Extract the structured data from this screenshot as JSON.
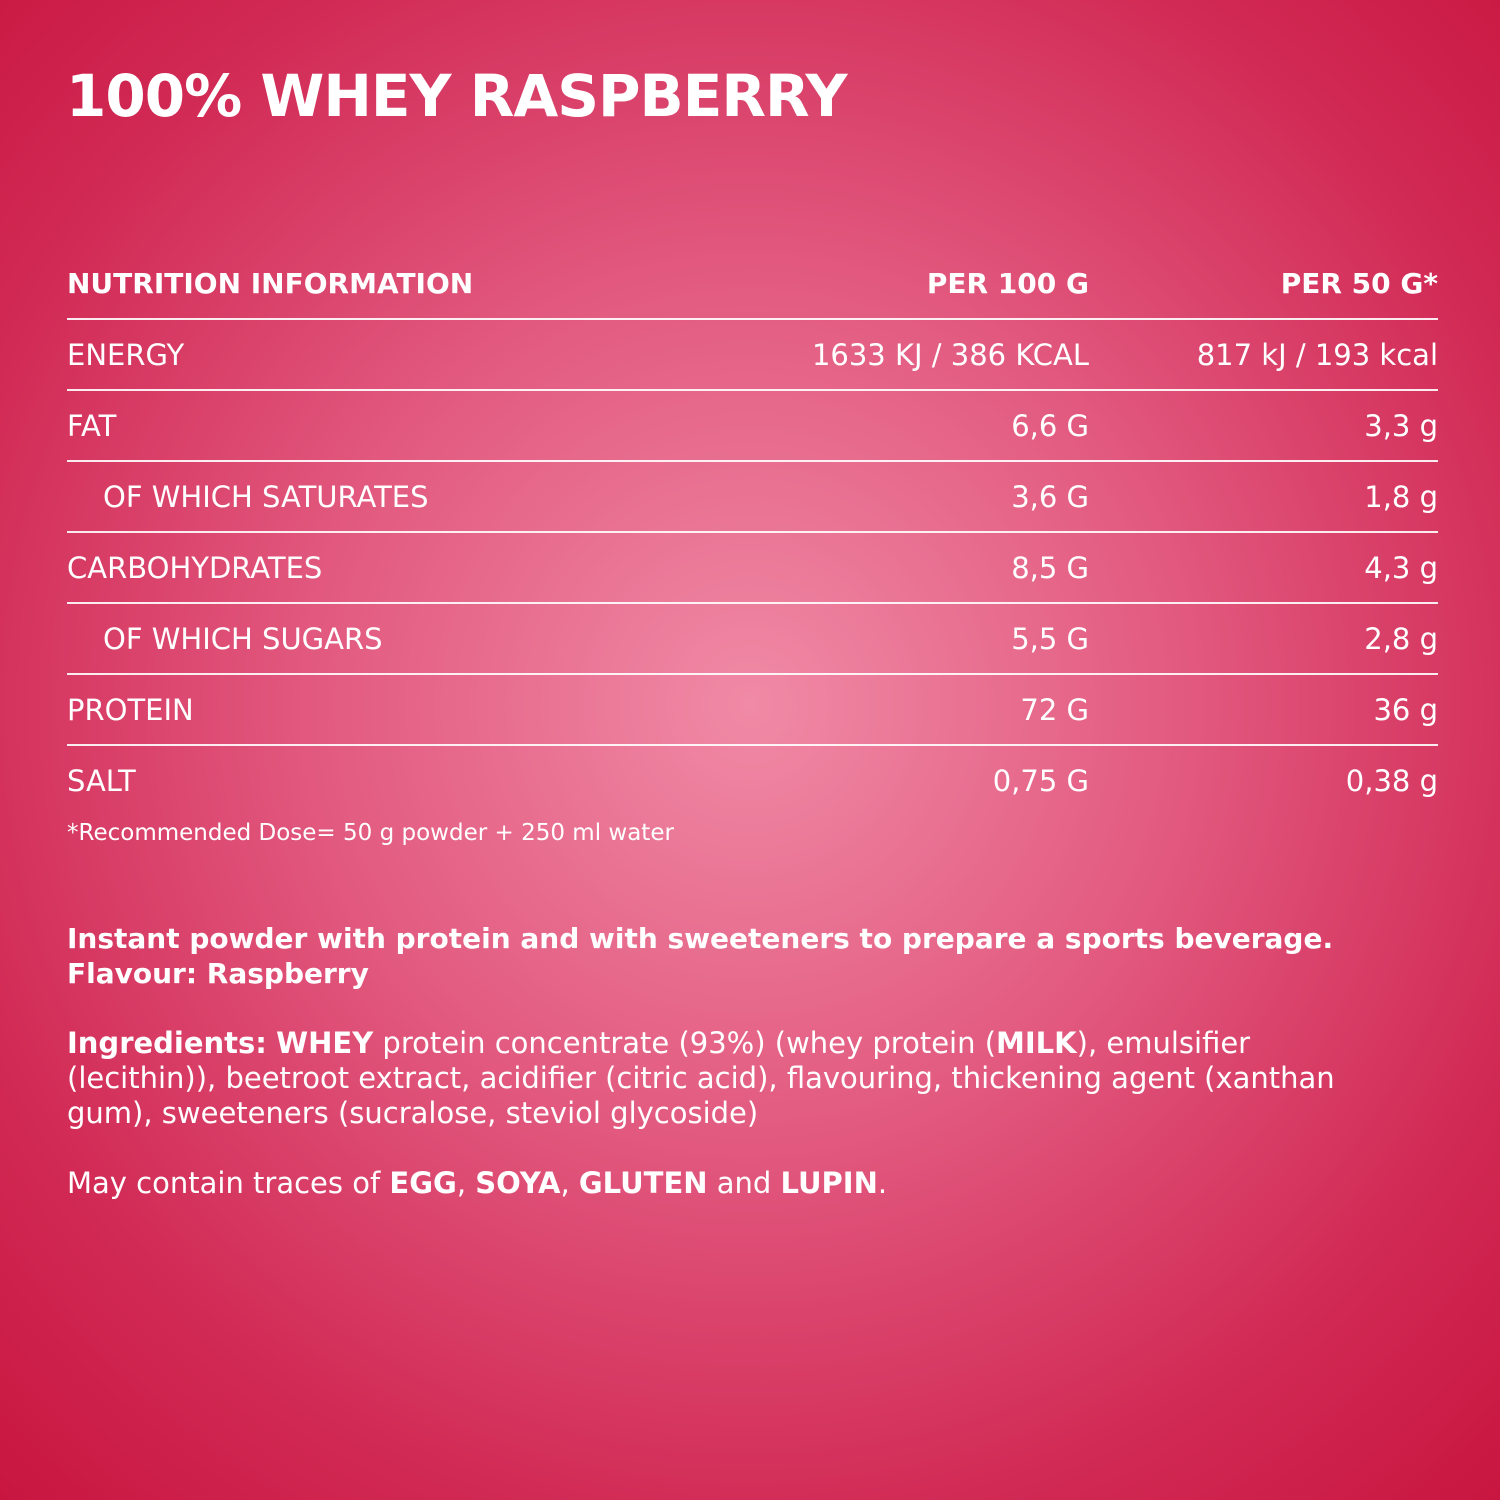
{
  "title": "100% WHEY RASPBERRY",
  "table": {
    "header": [
      "NUTRITION INFORMATION",
      "PER 100 G",
      "PER 50 G*"
    ],
    "rows": [
      [
        "ENERGY",
        "1633 KJ / 386 KCAL",
        "817 kJ / 193 kcal"
      ],
      [
        "FAT",
        "6,6 G",
        "3,3 g"
      ],
      [
        "OF WHICH SATURATES",
        "3,6 G",
        "1,8 g"
      ],
      [
        "CARBOHYDRATES",
        "8,5 G",
        "4,3 g"
      ],
      [
        "OF WHICH SUGARS",
        "5,5 G",
        "2,8 g"
      ],
      [
        "PROTEIN",
        "72 G",
        "36 g"
      ],
      [
        "SALT",
        "0,75 G",
        "0,38 g"
      ]
    ]
  },
  "footnote": "*Recommended Dose= 50 g powder + 250 ml water",
  "description": [
    "Instant powder with protein and with sweeteners to prepare a sports beverage.",
    "Flavour: Raspberry"
  ],
  "ingredients": [
    "Ingredients:",
    " ",
    "WHEY",
    " protein concentrate (93%) (whey protein (",
    "MILK",
    "), emulsifier (lecithin)), beetroot extract, acidifier (citric acid), flavouring, thickening agent (xanthan gum), sweeteners (sucralose, steviol glycoside)"
  ],
  "allergens": [
    "May contain traces of ",
    "EGG",
    ", ",
    "SOYA",
    ", ",
    "GLUTEN",
    " and ",
    "LUPIN",
    "."
  ]
}
